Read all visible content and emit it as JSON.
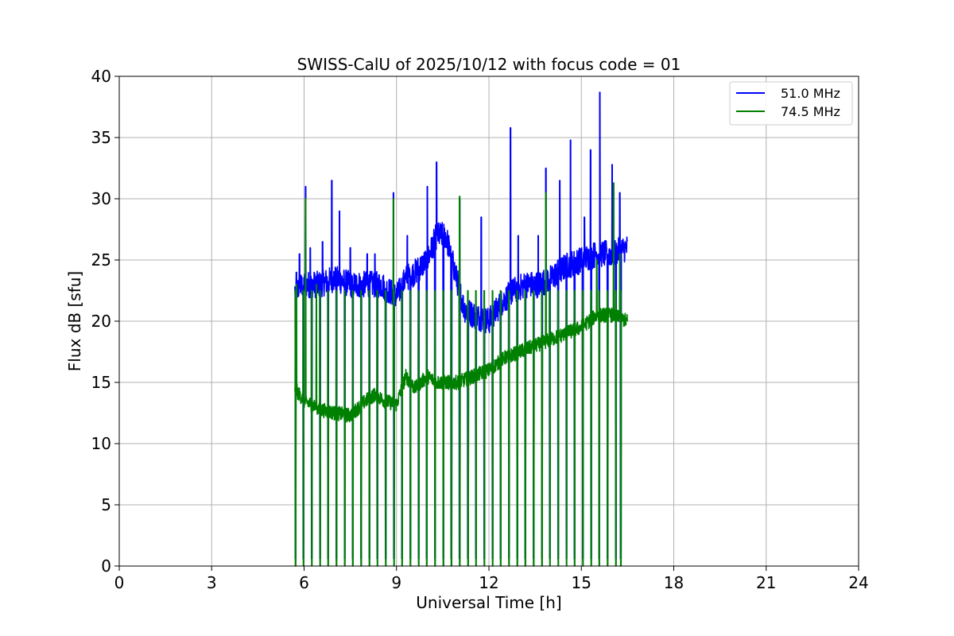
{
  "chart_data": {
    "type": "line",
    "title": "SWISS-CalU of 2025/10/12 with focus code = 01",
    "xlabel": "Universal Time [h]",
    "ylabel": "Flux dB [sfu]",
    "xlim": [
      0,
      24
    ],
    "ylim": [
      0,
      40
    ],
    "xticks": [
      "0",
      "3",
      "6",
      "9",
      "12",
      "15",
      "18",
      "21",
      "24"
    ],
    "yticks": [
      "0",
      "5",
      "10",
      "15",
      "20",
      "25",
      "30",
      "35",
      "40"
    ],
    "grid": true,
    "legend_position": "top-right",
    "series": [
      {
        "name": "51.0 MHz",
        "color": "#0000ff",
        "baseline": [
          [
            5.7,
            22.5
          ],
          [
            6.0,
            23.0
          ],
          [
            6.5,
            23.0
          ],
          [
            7.0,
            23.5
          ],
          [
            7.5,
            23.0
          ],
          [
            8.0,
            23.0
          ],
          [
            8.5,
            23.0
          ],
          [
            9.0,
            22.0
          ],
          [
            9.3,
            23.5
          ],
          [
            9.6,
            24.0
          ],
          [
            10.0,
            25.0
          ],
          [
            10.3,
            27.0
          ],
          [
            10.6,
            27.0
          ],
          [
            10.9,
            24.0
          ],
          [
            11.2,
            21.0
          ],
          [
            11.5,
            20.5
          ],
          [
            12.0,
            20.0
          ],
          [
            12.4,
            21.5
          ],
          [
            12.8,
            22.5
          ],
          [
            13.2,
            23.0
          ],
          [
            13.6,
            23.0
          ],
          [
            14.0,
            23.5
          ],
          [
            14.5,
            24.5
          ],
          [
            15.0,
            25.0
          ],
          [
            15.5,
            25.5
          ],
          [
            16.0,
            25.5
          ],
          [
            16.5,
            26.0
          ]
        ],
        "spikes": [
          [
            5.75,
            24.0
          ],
          [
            5.85,
            25.5
          ],
          [
            6.05,
            31.0
          ],
          [
            6.2,
            26.0
          ],
          [
            6.6,
            26.5
          ],
          [
            6.9,
            31.5
          ],
          [
            7.15,
            29.0
          ],
          [
            7.5,
            26.0
          ],
          [
            8.05,
            25.5
          ],
          [
            8.3,
            25.5
          ],
          [
            8.9,
            30.5
          ],
          [
            9.35,
            27.0
          ],
          [
            10.0,
            31.0
          ],
          [
            10.3,
            33.0
          ],
          [
            11.05,
            30.0
          ],
          [
            11.75,
            28.5
          ],
          [
            12.7,
            35.8
          ],
          [
            12.95,
            27.0
          ],
          [
            13.6,
            27.0
          ],
          [
            13.85,
            32.5
          ],
          [
            14.3,
            31.5
          ],
          [
            14.65,
            34.8
          ],
          [
            15.1,
            28.5
          ],
          [
            15.3,
            34.0
          ],
          [
            15.6,
            38.7
          ],
          [
            16.0,
            32.8
          ],
          [
            16.25,
            30.5
          ]
        ],
        "pulses": [
          5.72,
          5.98,
          6.25,
          6.52,
          6.78,
          7.05,
          7.32,
          7.58,
          7.85,
          8.12,
          8.38,
          8.65,
          8.92,
          9.18,
          9.45,
          9.72,
          9.98,
          10.25,
          10.52,
          10.78,
          11.05,
          11.32,
          11.58,
          11.85,
          12.12,
          12.38,
          12.65,
          12.92,
          13.18,
          13.45,
          13.72,
          13.98,
          14.25,
          14.52,
          14.78,
          15.05,
          15.32,
          15.58,
          15.85,
          16.12,
          16.28
        ],
        "pulse_floor": 0.6
      },
      {
        "name": "74.5 MHz",
        "color": "#008000",
        "baseline": [
          [
            5.7,
            14.5
          ],
          [
            6.0,
            13.5
          ],
          [
            6.5,
            12.8
          ],
          [
            7.0,
            12.5
          ],
          [
            7.5,
            12.3
          ],
          [
            8.0,
            13.5
          ],
          [
            8.3,
            14.0
          ],
          [
            8.6,
            13.5
          ],
          [
            9.0,
            13.2
          ],
          [
            9.3,
            15.5
          ],
          [
            9.6,
            14.5
          ],
          [
            10.0,
            15.5
          ],
          [
            10.3,
            15.0
          ],
          [
            10.6,
            15.0
          ],
          [
            11.0,
            15.0
          ],
          [
            11.5,
            15.5
          ],
          [
            12.0,
            16.0
          ],
          [
            12.5,
            17.0
          ],
          [
            13.0,
            17.5
          ],
          [
            13.5,
            18.0
          ],
          [
            14.0,
            18.5
          ],
          [
            14.5,
            19.0
          ],
          [
            15.0,
            19.5
          ],
          [
            15.5,
            20.5
          ],
          [
            16.0,
            20.5
          ],
          [
            16.5,
            20.0
          ]
        ],
        "spikes": [
          [
            5.75,
            23.0
          ],
          [
            6.05,
            30.0
          ],
          [
            6.4,
            23.0
          ],
          [
            8.9,
            30.0
          ],
          [
            11.05,
            30.2
          ],
          [
            13.85,
            30.5
          ],
          [
            15.5,
            25.0
          ],
          [
            16.05,
            31.3
          ],
          [
            16.25,
            25.5
          ]
        ],
        "pulses": [
          5.72,
          5.98,
          6.25,
          6.52,
          6.78,
          7.05,
          7.32,
          7.58,
          7.85,
          8.12,
          8.38,
          8.65,
          8.92,
          9.18,
          9.45,
          9.72,
          9.98,
          10.25,
          10.52,
          10.78,
          11.05,
          11.32,
          11.58,
          11.85,
          12.12,
          12.38,
          12.65,
          12.92,
          13.18,
          13.45,
          13.72,
          13.98,
          14.25,
          14.52,
          14.78,
          15.05,
          15.32,
          15.58,
          15.85,
          16.12,
          16.28
        ],
        "pulse_peak": 22.5,
        "pulse_floor": 0.0
      }
    ]
  }
}
